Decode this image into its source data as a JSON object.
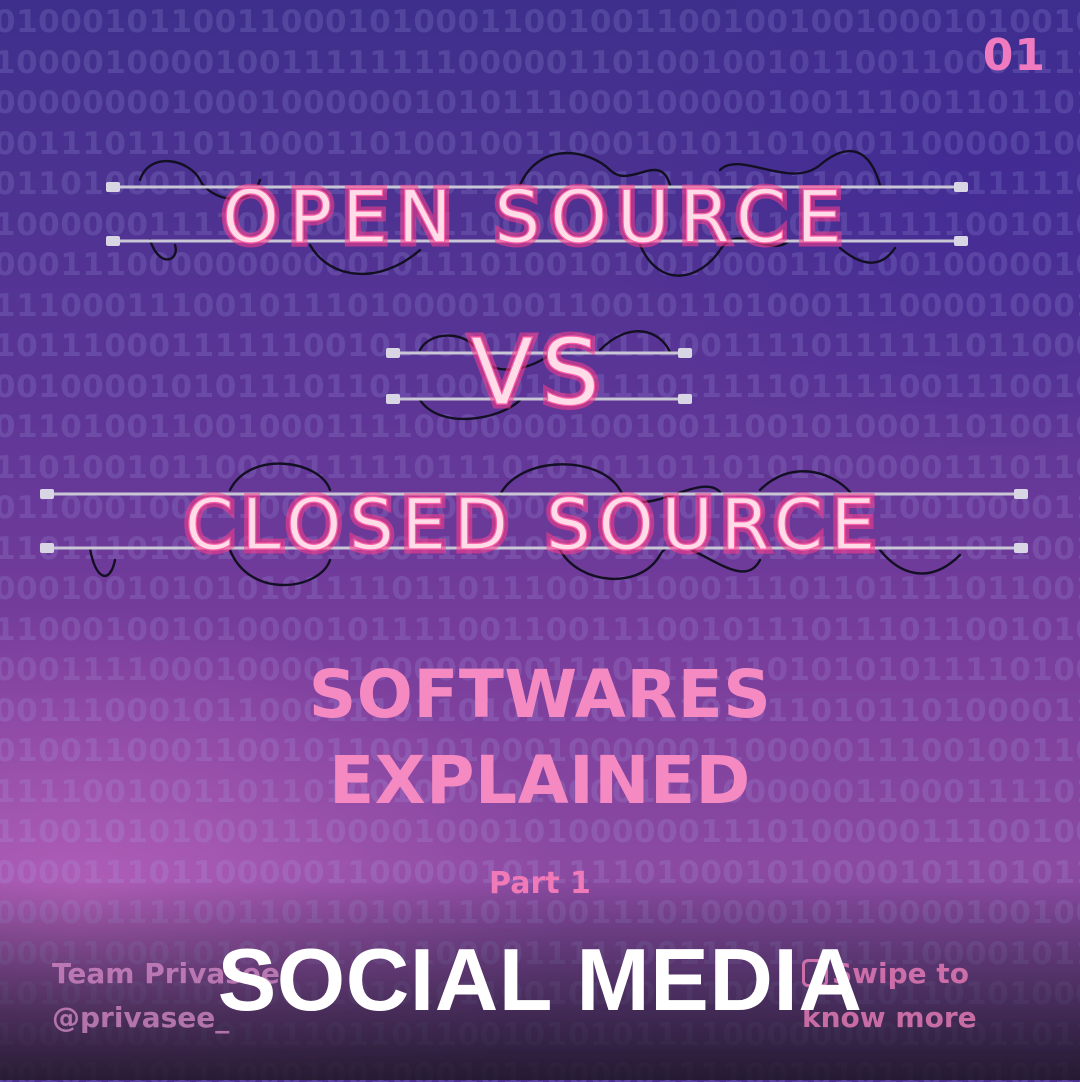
{
  "page_number": "01",
  "neon_sign": {
    "line1": "OPEN SOURCE",
    "line2": "VS",
    "line3": "CLOSED SOURCE"
  },
  "subtitle": {
    "line1": "SOFTWARES",
    "line2": "EXPLAINED"
  },
  "part_label": "Part 1",
  "headline": "SOCIAL MEDIA",
  "team": {
    "name": "Team Privasee",
    "handle": "@privasee_"
  },
  "swipe": {
    "line1": "Swipe to",
    "line2": "know more",
    "icon": "swipe-icon"
  },
  "colors": {
    "neon_pink": "#ff5fa5",
    "subtitle_pink": "#f58ac3",
    "headline_white": "#ffffff"
  }
}
